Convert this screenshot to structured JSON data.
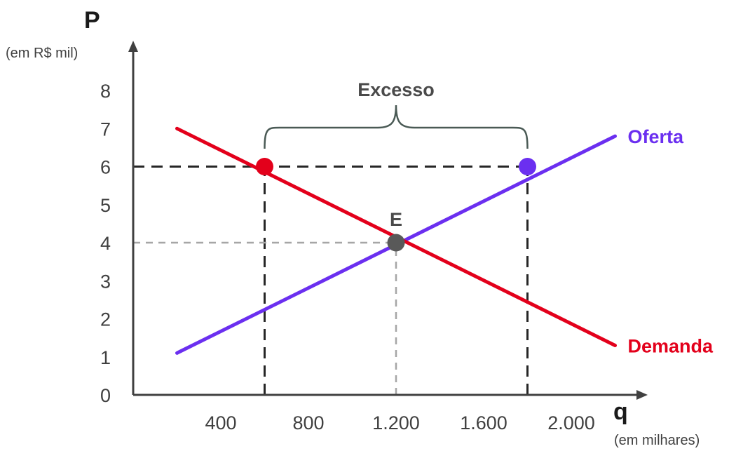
{
  "chart_data": {
    "type": "line",
    "ylabel": "P",
    "ylabel_unit": "(em R$ mil)",
    "xlabel": "q",
    "xlabel_unit": "(em milhares)",
    "y_ticks": [
      "0",
      "1",
      "2",
      "3",
      "4",
      "5",
      "6",
      "7",
      "8"
    ],
    "x_ticks": [
      "400",
      "800",
      "1.200",
      "1.600",
      "2.000"
    ],
    "x_tick_values": [
      400,
      800,
      1200,
      1600,
      2000
    ],
    "xlim": [
      0,
      2300
    ],
    "ylim": [
      0,
      8.5
    ],
    "series": [
      {
        "name": "Oferta",
        "color": "#6b2ff0",
        "points": [
          [
            200,
            1.1
          ],
          [
            2200,
            6.8
          ]
        ]
      },
      {
        "name": "Demanda",
        "color": "#e3001b",
        "points": [
          [
            200,
            7.0
          ],
          [
            2200,
            1.3
          ]
        ]
      }
    ],
    "markers": [
      {
        "x": 600,
        "y": 6,
        "color": "#e3001b"
      },
      {
        "x": 1800,
        "y": 6,
        "color": "#6b2ff0"
      },
      {
        "x": 1200,
        "y": 4,
        "color": "#595959",
        "label": "E"
      }
    ],
    "guides": [
      {
        "from": [
          0,
          6
        ],
        "to": [
          1800,
          6
        ],
        "style": "dark-dashed"
      },
      {
        "from": [
          600,
          0
        ],
        "to": [
          600,
          6
        ],
        "style": "dark-dashed"
      },
      {
        "from": [
          1800,
          0
        ],
        "to": [
          1800,
          6
        ],
        "style": "dark-dashed"
      },
      {
        "from": [
          0,
          4
        ],
        "to": [
          1200,
          4
        ],
        "style": "light-dashed"
      },
      {
        "from": [
          1200,
          0
        ],
        "to": [
          1200,
          4
        ],
        "style": "light-dashed"
      }
    ],
    "annotations": [
      {
        "text": "Excesso",
        "type": "brace",
        "x_from": 600,
        "x_to": 1800
      }
    ],
    "grid": false
  }
}
